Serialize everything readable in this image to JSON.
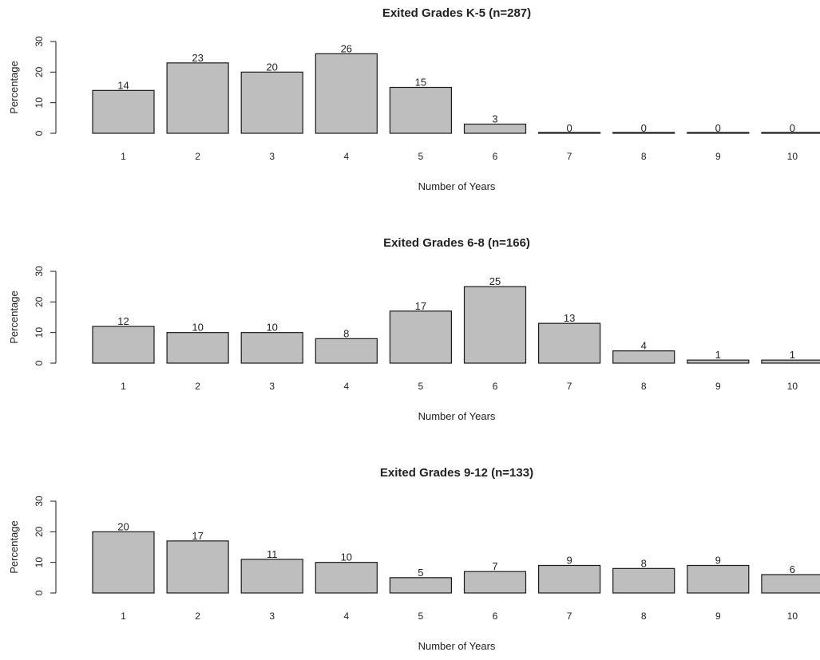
{
  "chart_data": [
    {
      "type": "bar",
      "title": "Exited Grades K-5 (n=287)",
      "xlabel": "Number of Years",
      "ylabel": "Percentage",
      "categories": [
        "1",
        "2",
        "3",
        "4",
        "5",
        "6",
        "7",
        "8",
        "9",
        "10"
      ],
      "values": [
        14,
        23,
        20,
        26,
        15,
        3,
        0,
        0,
        0,
        0
      ],
      "ylim": [
        0,
        30
      ],
      "yticks": [
        "0",
        "10",
        "20",
        "30"
      ],
      "grid": false,
      "legend": "none",
      "bar_color": "#bebebe",
      "border_color": "#1a1a1a"
    },
    {
      "type": "bar",
      "title": "Exited Grades 6-8  (n=166)",
      "xlabel": "Number of Years",
      "ylabel": "Percentage",
      "categories": [
        "1",
        "2",
        "3",
        "4",
        "5",
        "6",
        "7",
        "8",
        "9",
        "10"
      ],
      "values": [
        12,
        10,
        10,
        8,
        17,
        25,
        13,
        4,
        1,
        1
      ],
      "ylim": [
        0,
        30
      ],
      "yticks": [
        "0",
        "10",
        "20",
        "30"
      ],
      "grid": false,
      "legend": "none",
      "bar_color": "#bebebe",
      "border_color": "#1a1a1a"
    },
    {
      "type": "bar",
      "title": "Exited Grades 9-12 (n=133)",
      "xlabel": "Number of Years",
      "ylabel": "Percentage",
      "categories": [
        "1",
        "2",
        "3",
        "4",
        "5",
        "6",
        "7",
        "8",
        "9",
        "10"
      ],
      "values": [
        20,
        17,
        11,
        10,
        5,
        7,
        9,
        8,
        9,
        6
      ],
      "ylim": [
        0,
        30
      ],
      "yticks": [
        "0",
        "10",
        "20",
        "30"
      ],
      "grid": false,
      "legend": "none",
      "bar_color": "#bebebe",
      "border_color": "#1a1a1a"
    }
  ]
}
